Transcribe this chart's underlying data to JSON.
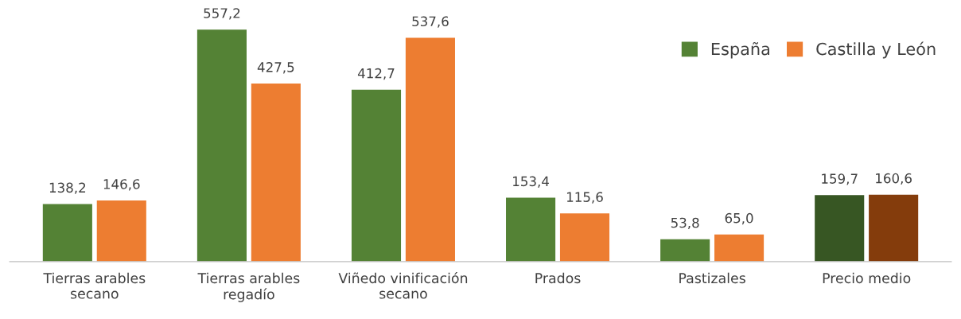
{
  "chart_data": {
    "type": "bar",
    "categories": [
      "Tierras arables\nsecano",
      "Tierras arables\nregadío",
      "Viñedo vinificación\nsecano",
      "Prados",
      "Pastizales",
      "Precio medio"
    ],
    "series": [
      {
        "name": "España",
        "color": "#548235",
        "colors": [
          "#548235",
          "#548235",
          "#548235",
          "#548235",
          "#548235",
          "#375623"
        ],
        "values": [
          138.2,
          557.2,
          412.7,
          153.4,
          53.8,
          159.7
        ],
        "value_labels": [
          "138,2",
          "557,2",
          "412,7",
          "153,4",
          "53,8",
          "159,7"
        ]
      },
      {
        "name": "Castilla y León",
        "color": "#ed7d31",
        "colors": [
          "#ed7d31",
          "#ed7d31",
          "#ed7d31",
          "#ed7d31",
          "#ed7d31",
          "#843c0c"
        ],
        "values": [
          146.6,
          427.5,
          537.6,
          115.6,
          65.0,
          160.6
        ],
        "value_labels": [
          "146,6",
          "427,5",
          "537,6",
          "115,6",
          "65,0",
          "160,6"
        ]
      }
    ],
    "legend": "top right"
  }
}
